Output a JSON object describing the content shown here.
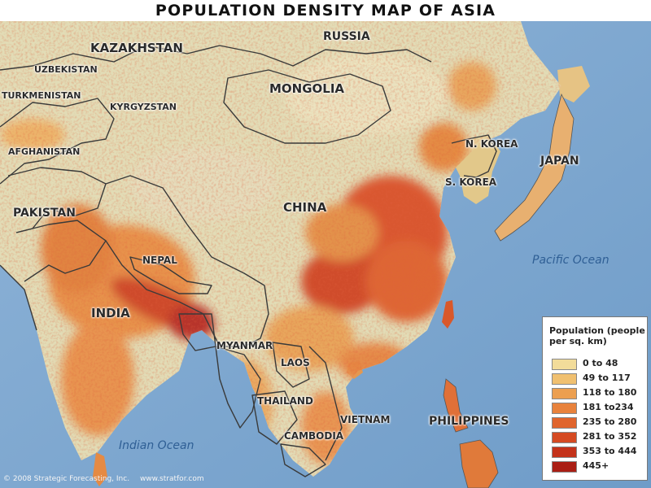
{
  "title": "POPULATION DENSITY MAP OF ASIA",
  "countries": [
    "RUSSIA",
    "KAZAKHSTAN",
    "UZBEKISTAN",
    "TURKMENISTAN",
    "KYRGYZSTAN",
    "MONGOLIA",
    "N. KOREA",
    "S. KOREA",
    "JAPAN",
    "AFGHANISTAN",
    "PAKISTAN",
    "CHINA",
    "NEPAL",
    "INDIA",
    "MYANMAR",
    "LAOS",
    "THAILAND",
    "VIETNAM",
    "CAMBODIA",
    "PHILIPPINES"
  ],
  "oceans": [
    "Pacific Ocean",
    "Indian Ocean"
  ],
  "legend": {
    "title": "Population (people per sq. km)",
    "items": [
      {
        "label": "0 to 48",
        "color": "#f2dc9a"
      },
      {
        "label": "49 to 117",
        "color": "#f0c070"
      },
      {
        "label": "118 to 180",
        "color": "#ec9f50"
      },
      {
        "label": "181 to234",
        "color": "#e8823c"
      },
      {
        "label": "235 to 280",
        "color": "#e0642c"
      },
      {
        "label": "281 to 352",
        "color": "#d54a22"
      },
      {
        "label": "353 to 444",
        "color": "#c4321a"
      },
      {
        "label": "445+",
        "color": "#aa1e14"
      }
    ]
  },
  "credit": {
    "copyright": "© 2008 Strategic Forecasting, Inc.",
    "website": "www.stratfor.com"
  },
  "colors": {
    "ocean": "#7aa3cb",
    "land": "#ddd8b0",
    "border": "#3a3a3a"
  }
}
